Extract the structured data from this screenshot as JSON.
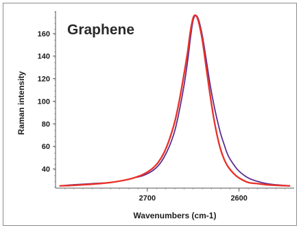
{
  "chart_data": {
    "type": "line",
    "title": "Graphene",
    "xlabel": "Wavenumbers (cm-1)",
    "ylabel": "Raman intensity",
    "x_reversed": true,
    "xlim": [
      2800,
      2540
    ],
    "ylim": [
      23,
      180
    ],
    "x_ticks": [
      2700,
      2600
    ],
    "x_tick_labels": [
      "2700",
      "2600"
    ],
    "y_ticks": [
      40,
      60,
      80,
      100,
      120,
      140,
      160
    ],
    "y_tick_labels": [
      "40",
      "60",
      "80",
      "100",
      "120",
      "140",
      "160"
    ],
    "grid": false,
    "series": [
      {
        "color": "#5a2d91",
        "x": [
          2795,
          2780,
          2760,
          2740,
          2725,
          2715,
          2705,
          2695,
          2688,
          2682,
          2676,
          2670,
          2665,
          2660,
          2656,
          2653,
          2650,
          2647,
          2644,
          2640,
          2636,
          2632,
          2628,
          2624,
          2620,
          2616,
          2612,
          2606,
          2600,
          2590,
          2580,
          2570,
          2560,
          2545
        ],
        "y": [
          25,
          26,
          27,
          28,
          30,
          32,
          34,
          38,
          43,
          50,
          60,
          74,
          92,
          114,
          136,
          156,
          172,
          176,
          172,
          158,
          138,
          117,
          99,
          84,
          71,
          61,
          52,
          44,
          38,
          32,
          29,
          27,
          26,
          25
        ]
      },
      {
        "color": "#e8332a",
        "x": [
          2795,
          2780,
          2760,
          2740,
          2725,
          2715,
          2705,
          2695,
          2688,
          2682,
          2676,
          2670,
          2665,
          2660,
          2656,
          2653,
          2650,
          2647,
          2644,
          2640,
          2636,
          2632,
          2628,
          2624,
          2620,
          2616,
          2612,
          2606,
          2600,
          2590,
          2580,
          2570,
          2560,
          2545
        ],
        "y": [
          25,
          25.5,
          26.5,
          28,
          30,
          32,
          35,
          40,
          46,
          54,
          66,
          82,
          101,
          124,
          144,
          162,
          174,
          176,
          170,
          154,
          131,
          108,
          87,
          70,
          57,
          48,
          42,
          36,
          32,
          28,
          27,
          26,
          25.5,
          25
        ]
      }
    ]
  }
}
